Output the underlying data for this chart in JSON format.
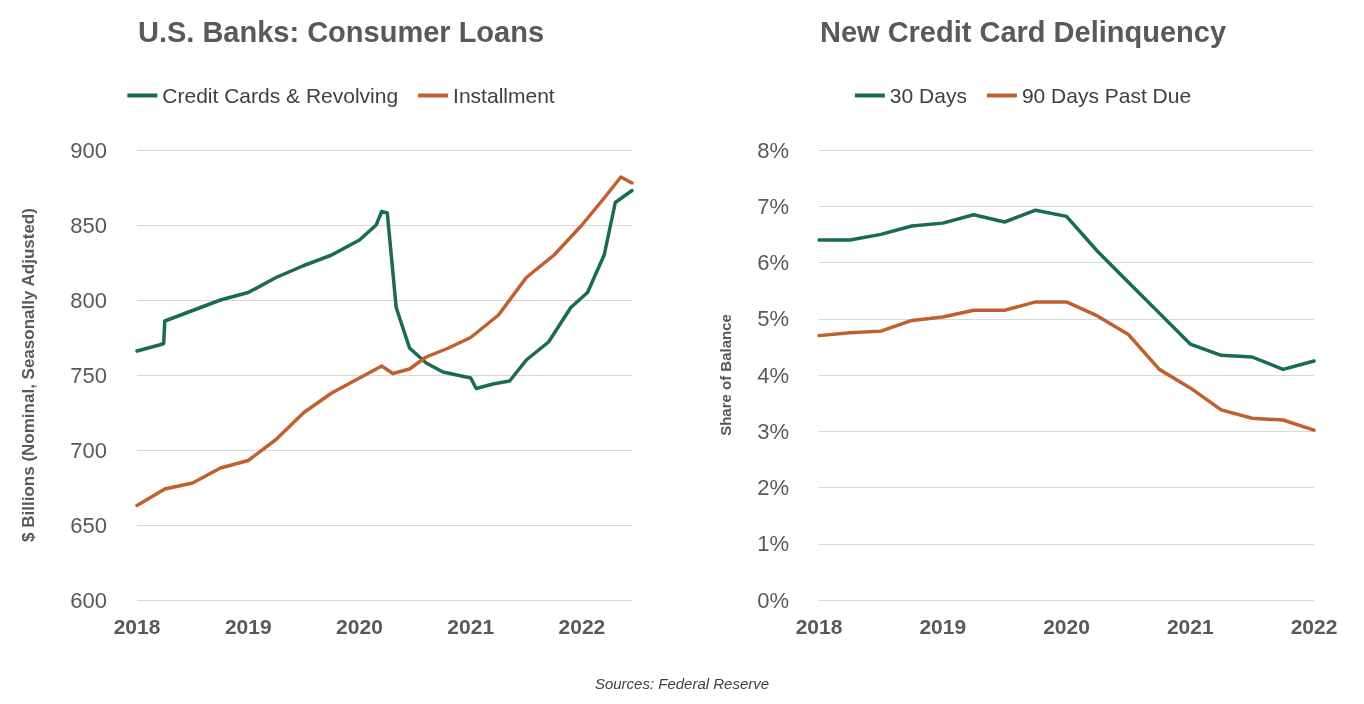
{
  "chart_data": [
    {
      "type": "line",
      "title": "U.S. Banks: Consumer Loans",
      "ylabel": "$ Billions (Nominal, Seasonally Adjusted)",
      "xlim": [
        2018,
        2022.45
      ],
      "xticks": [
        2018,
        2019,
        2020,
        2021,
        2022
      ],
      "ylim": [
        600,
        900
      ],
      "yticks": [
        600,
        650,
        700,
        750,
        800,
        850,
        900
      ],
      "grid": "y",
      "legend": "top",
      "marker": "none",
      "line_style": "solid",
      "annotations": [
        "Sources: Federal Reserve"
      ],
      "series": [
        {
          "name": "Credit Cards & Revolving",
          "color": "#1a6b4f",
          "x": [
            2018,
            2018.2,
            2018.24,
            2018.25,
            2018.5,
            2018.75,
            2019,
            2019.25,
            2019.5,
            2019.75,
            2020,
            2020.15,
            2020.2,
            2020.25,
            2020.33,
            2020.45,
            2020.6,
            2020.75,
            2021,
            2021.05,
            2021.2,
            2021.35,
            2021.5,
            2021.7,
            2021.9,
            2022.05,
            2022.2,
            2022.3,
            2022.45
          ],
          "values": [
            766,
            770,
            771,
            786,
            793,
            800,
            805,
            815,
            823,
            830,
            840,
            850,
            859,
            858,
            795,
            768,
            758,
            752,
            748,
            741,
            744,
            746,
            760,
            772,
            795,
            805,
            830,
            865,
            873
          ]
        },
        {
          "name": "Installment",
          "color": "#c0602f",
          "x": [
            2018,
            2018.25,
            2018.5,
            2018.75,
            2019,
            2019.25,
            2019.5,
            2019.75,
            2020,
            2020.2,
            2020.3,
            2020.45,
            2020.6,
            2020.8,
            2021,
            2021.25,
            2021.5,
            2021.75,
            2022,
            2022.2,
            2022.35,
            2022.45
          ],
          "values": [
            663,
            674,
            678,
            688,
            693,
            707,
            725,
            738,
            748,
            756,
            751,
            754,
            762,
            768,
            775,
            790,
            815,
            830,
            850,
            868,
            882,
            878
          ]
        }
      ]
    },
    {
      "type": "line",
      "title": "New Credit Card Delinquency",
      "ylabel": "Share of Balance",
      "xlim": [
        2018,
        2022
      ],
      "xticks": [
        2018,
        2019,
        2020,
        2021,
        2022
      ],
      "ylim": [
        0,
        8
      ],
      "yticks": [
        {
          "value": 0,
          "label": "0%"
        },
        {
          "value": 1,
          "label": "1%"
        },
        {
          "value": 2,
          "label": "2%"
        },
        {
          "value": 3,
          "label": "3%"
        },
        {
          "value": 4,
          "label": "4%"
        },
        {
          "value": 5,
          "label": "5%"
        },
        {
          "value": 6,
          "label": "6%"
        },
        {
          "value": 7,
          "label": "7%"
        },
        {
          "value": 8,
          "label": "8%"
        }
      ],
      "grid": "y",
      "legend": "top",
      "marker": "none",
      "line_style": "solid",
      "x": [
        2018,
        2018.25,
        2018.5,
        2018.75,
        2019,
        2019.25,
        2019.5,
        2019.75,
        2020,
        2020.25,
        2020.5,
        2020.75,
        2021,
        2021.25,
        2021.5,
        2021.75,
        2022
      ],
      "series": [
        {
          "name": "30 Days",
          "color": "#1a6b4f",
          "values": [
            6.4,
            6.4,
            6.5,
            6.65,
            6.7,
            6.85,
            6.72,
            6.93,
            6.82,
            6.2,
            5.65,
            5.1,
            4.55,
            4.35,
            4.32,
            4.1,
            4.25
          ]
        },
        {
          "name": "90 Days Past Due",
          "color": "#c0602f",
          "values": [
            4.7,
            4.75,
            4.78,
            4.97,
            5.03,
            5.15,
            5.15,
            5.3,
            5.3,
            5.05,
            4.72,
            4.1,
            3.77,
            3.38,
            3.23,
            3.2,
            3.02
          ]
        }
      ]
    }
  ]
}
